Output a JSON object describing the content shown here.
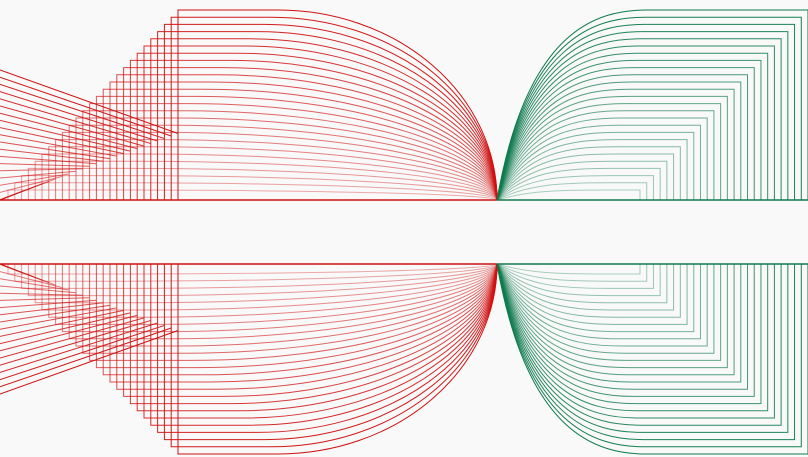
{
  "artwork": {
    "title": "",
    "background_color": "#f9f9f9",
    "colors": {
      "red": "#d01010",
      "green": "#0f7a4e"
    },
    "line_count": 26,
    "description_visible_text": ""
  }
}
